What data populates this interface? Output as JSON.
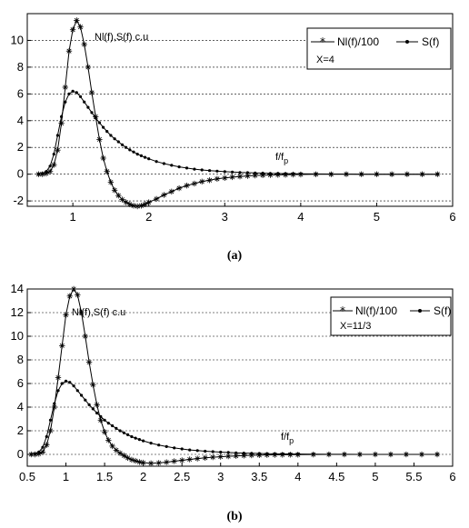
{
  "chart_data": [
    {
      "type": "line",
      "caption": "(a)",
      "annotation_ylabel": "Nl(f),S(f) c.u",
      "annotation_xlabel": "f/f",
      "annotation_xlabel_sub": "p",
      "param_label": "X=4",
      "xlim": [
        0.4,
        6
      ],
      "ylim": [
        -2.4,
        12
      ],
      "xticks": [
        1,
        2,
        3,
        4,
        5,
        6
      ],
      "xtick_labels": [
        "1",
        "2",
        "3",
        "4",
        "5",
        "6"
      ],
      "yticks": [
        -2,
        0,
        2,
        4,
        6,
        8,
        10
      ],
      "ytick_labels": [
        "-2",
        "0",
        "2",
        "4",
        "6",
        "8",
        "10"
      ],
      "grid": "horizontal dashed",
      "legend_position": "top-right",
      "series": [
        {
          "name": "Nl(f)/100",
          "marker": "star",
          "x": [
            0.55,
            0.6,
            0.65,
            0.7,
            0.75,
            0.8,
            0.85,
            0.9,
            0.95,
            1.0,
            1.05,
            1.1,
            1.15,
            1.2,
            1.25,
            1.3,
            1.35,
            1.4,
            1.45,
            1.5,
            1.55,
            1.6,
            1.65,
            1.7,
            1.75,
            1.8,
            1.85,
            1.9,
            1.95,
            2.0,
            2.1,
            2.2,
            2.3,
            2.4,
            2.5,
            2.6,
            2.7,
            2.8,
            2.9,
            3.0,
            3.1,
            3.2,
            3.3,
            3.4,
            3.5,
            3.6,
            3.7,
            3.8,
            3.9,
            4.0,
            4.2,
            4.4,
            4.6,
            4.8,
            5.0,
            5.2,
            5.4,
            5.6,
            5.8
          ],
          "y": [
            0,
            0,
            0.05,
            0.2,
            0.7,
            1.8,
            3.8,
            6.5,
            9.2,
            10.8,
            11.5,
            11.0,
            9.7,
            8.0,
            6.1,
            4.3,
            2.6,
            1.2,
            0.2,
            -0.6,
            -1.2,
            -1.6,
            -1.9,
            -2.1,
            -2.25,
            -2.35,
            -2.4,
            -2.35,
            -2.25,
            -2.1,
            -1.85,
            -1.55,
            -1.3,
            -1.05,
            -0.85,
            -0.7,
            -0.55,
            -0.45,
            -0.35,
            -0.28,
            -0.22,
            -0.17,
            -0.13,
            -0.1,
            -0.08,
            -0.06,
            -0.05,
            -0.04,
            -0.03,
            -0.02,
            -0.01,
            -0.01,
            0,
            0,
            0,
            0,
            0,
            0,
            0
          ]
        },
        {
          "name": "S(f)",
          "marker": "dot",
          "x": [
            0.55,
            0.6,
            0.65,
            0.7,
            0.75,
            0.8,
            0.85,
            0.9,
            0.95,
            1.0,
            1.05,
            1.1,
            1.15,
            1.2,
            1.25,
            1.3,
            1.35,
            1.4,
            1.45,
            1.5,
            1.55,
            1.6,
            1.65,
            1.7,
            1.75,
            1.8,
            1.85,
            1.9,
            1.95,
            2.0,
            2.1,
            2.2,
            2.3,
            2.4,
            2.5,
            2.6,
            2.7,
            2.8,
            2.9,
            3.0,
            3.1,
            3.2,
            3.3,
            3.4,
            3.5,
            3.6,
            3.7,
            3.8,
            3.9,
            4.0,
            4.2,
            4.4,
            4.6,
            4.8,
            5.0,
            5.2,
            5.4,
            5.6,
            5.8
          ],
          "y": [
            0,
            0.05,
            0.2,
            0.6,
            1.5,
            2.9,
            4.3,
            5.4,
            6.0,
            6.2,
            6.1,
            5.8,
            5.4,
            5.0,
            4.6,
            4.2,
            3.85,
            3.5,
            3.2,
            2.9,
            2.65,
            2.42,
            2.2,
            2.0,
            1.82,
            1.66,
            1.5,
            1.38,
            1.26,
            1.15,
            0.95,
            0.79,
            0.66,
            0.55,
            0.46,
            0.38,
            0.32,
            0.27,
            0.23,
            0.19,
            0.16,
            0.13,
            0.11,
            0.09,
            0.08,
            0.06,
            0.05,
            0.04,
            0.04,
            0.03,
            0.02,
            0.01,
            0.01,
            0,
            0,
            0,
            0,
            0,
            0
          ]
        }
      ]
    },
    {
      "type": "line",
      "caption": "(b)",
      "annotation_ylabel": "Nl(f),S(f) c.u",
      "annotation_xlabel": "f/f",
      "annotation_xlabel_sub": "p",
      "param_label": "X=11/3",
      "xlim": [
        0.5,
        6
      ],
      "ylim": [
        -1,
        14
      ],
      "xticks": [
        0.5,
        1,
        1.5,
        2,
        2.5,
        3,
        3.5,
        4,
        4.5,
        5,
        5.5,
        6
      ],
      "xtick_labels": [
        "0.5",
        "1",
        "1.5",
        "2",
        "2.5",
        "3",
        "3.5",
        "4",
        "4.5",
        "5",
        "5.5",
        "6"
      ],
      "yticks": [
        0,
        2,
        4,
        6,
        8,
        10,
        12,
        14
      ],
      "ytick_labels": [
        "0",
        "2",
        "4",
        "6",
        "8",
        "10",
        "12",
        "14"
      ],
      "grid": "horizontal dashed",
      "legend_position": "top-right",
      "series": [
        {
          "name": "Nl(f)/100",
          "marker": "star",
          "x": [
            0.55,
            0.6,
            0.65,
            0.7,
            0.75,
            0.8,
            0.85,
            0.9,
            0.95,
            1.0,
            1.05,
            1.1,
            1.15,
            1.2,
            1.25,
            1.3,
            1.35,
            1.4,
            1.45,
            1.5,
            1.55,
            1.6,
            1.65,
            1.7,
            1.75,
            1.8,
            1.85,
            1.9,
            1.95,
            2.0,
            2.1,
            2.2,
            2.3,
            2.4,
            2.5,
            2.6,
            2.7,
            2.8,
            2.9,
            3.0,
            3.1,
            3.2,
            3.3,
            3.4,
            3.5,
            3.6,
            3.7,
            3.8,
            3.9,
            4.0,
            4.2,
            4.4,
            4.6,
            4.8,
            5.0,
            5.2,
            5.4,
            5.6,
            5.8
          ],
          "y": [
            0,
            0,
            0.05,
            0.2,
            0.8,
            2.0,
            4.0,
            6.5,
            9.2,
            11.8,
            13.4,
            14.0,
            13.5,
            12.0,
            10.0,
            7.8,
            5.9,
            4.2,
            2.9,
            1.9,
            1.2,
            0.7,
            0.35,
            0.1,
            -0.1,
            -0.3,
            -0.45,
            -0.55,
            -0.65,
            -0.7,
            -0.75,
            -0.72,
            -0.66,
            -0.58,
            -0.5,
            -0.42,
            -0.35,
            -0.29,
            -0.24,
            -0.2,
            -0.16,
            -0.13,
            -0.1,
            -0.08,
            -0.06,
            -0.05,
            -0.04,
            -0.03,
            -0.02,
            -0.02,
            -0.01,
            0,
            0,
            0,
            0,
            0,
            0,
            0,
            0
          ]
        },
        {
          "name": "S(f)",
          "marker": "dot",
          "x": [
            0.55,
            0.6,
            0.65,
            0.7,
            0.75,
            0.8,
            0.85,
            0.9,
            0.95,
            1.0,
            1.05,
            1.1,
            1.15,
            1.2,
            1.25,
            1.3,
            1.35,
            1.4,
            1.45,
            1.5,
            1.55,
            1.6,
            1.65,
            1.7,
            1.75,
            1.8,
            1.85,
            1.9,
            1.95,
            2.0,
            2.1,
            2.2,
            2.3,
            2.4,
            2.5,
            2.6,
            2.7,
            2.8,
            2.9,
            3.0,
            3.1,
            3.2,
            3.3,
            3.4,
            3.5,
            3.6,
            3.7,
            3.8,
            3.9,
            4.0,
            4.2,
            4.4,
            4.6,
            4.8,
            5.0,
            5.2,
            5.4,
            5.6,
            5.8
          ],
          "y": [
            0,
            0.05,
            0.2,
            0.6,
            1.5,
            2.9,
            4.3,
            5.4,
            6.0,
            6.2,
            6.1,
            5.8,
            5.4,
            5.0,
            4.6,
            4.2,
            3.85,
            3.5,
            3.2,
            2.9,
            2.65,
            2.42,
            2.2,
            2.0,
            1.82,
            1.66,
            1.5,
            1.38,
            1.26,
            1.15,
            0.95,
            0.79,
            0.66,
            0.55,
            0.46,
            0.38,
            0.32,
            0.27,
            0.23,
            0.19,
            0.16,
            0.13,
            0.11,
            0.09,
            0.08,
            0.06,
            0.05,
            0.04,
            0.04,
            0.03,
            0.02,
            0.01,
            0.01,
            0,
            0,
            0,
            0,
            0,
            0
          ]
        }
      ]
    }
  ]
}
